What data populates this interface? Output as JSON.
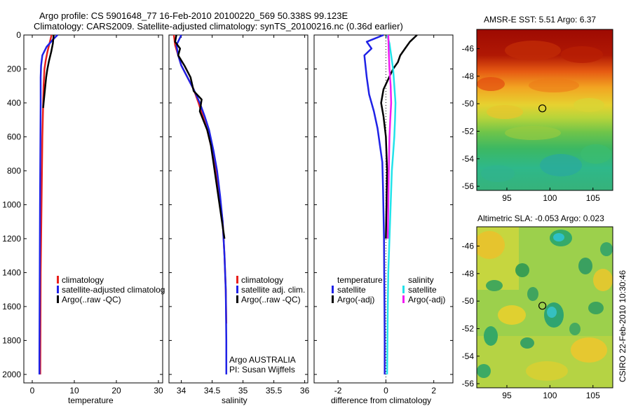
{
  "header": {
    "line1": "Argo profile: CS 5901648_77 16-Feb-2010 20100220_569 50.338S 99.123E",
    "line2": "Climatology: CARS2009. Satellite-adjusted climatology: synTS_20100216.nc (0.36d earlier)"
  },
  "side_label": "CSIRO 22-Feb-2010 10:30:46",
  "colors": {
    "climatology": "#e8201c",
    "satellite": "#1f22e6",
    "argo": "#000000",
    "sal_satellite": "#22e2ea",
    "sal_argo": "#f21bf2"
  },
  "chart_data": [
    {
      "id": "temperature",
      "type": "line",
      "xlabel": "temperature",
      "ylabel": "",
      "xlim": [
        -2,
        31
      ],
      "ylim": [
        2050,
        0
      ],
      "xticks": [
        0,
        10,
        20,
        30
      ],
      "yticks": [
        0,
        200,
        400,
        600,
        800,
        1000,
        1200,
        1400,
        1600,
        1800,
        2000
      ],
      "legend": [
        "climatology",
        "satellite-adjusted climatolog",
        "Argo(..raw -QC)"
      ],
      "series": [
        {
          "name": "climatology",
          "color": "#e8201c",
          "x": [
            4.6,
            4.1,
            3.6,
            3.2,
            2.9,
            2.7,
            2.6,
            2.5,
            2.4,
            2.3,
            2.2,
            2.1,
            2.0,
            1.95,
            1.9
          ],
          "y": [
            0,
            50,
            100,
            150,
            200,
            300,
            400,
            500,
            600,
            800,
            1000,
            1200,
            1400,
            1700,
            2000
          ]
        },
        {
          "name": "satellite-adjusted climatolog",
          "color": "#1f22e6",
          "x": [
            6.0,
            4.8,
            3.4,
            2.4,
            2.1,
            2.0,
            2.0,
            1.95,
            1.9,
            1.85,
            1.8,
            1.75,
            1.7,
            1.7
          ],
          "y": [
            0,
            30,
            70,
            120,
            180,
            250,
            400,
            600,
            800,
            1000,
            1300,
            1600,
            1900,
            2000
          ]
        },
        {
          "name": "Argo(..raw -QC)",
          "color": "#000000",
          "x": [
            5.1,
            4.9,
            4.5,
            4.0,
            3.6,
            3.3,
            3.1,
            2.9,
            2.7,
            2.6
          ],
          "y": [
            0,
            50,
            100,
            150,
            200,
            250,
            300,
            350,
            400,
            430
          ]
        }
      ]
    },
    {
      "id": "salinity",
      "type": "line",
      "xlabel": "salinity",
      "ylabel": "",
      "xlim": [
        33.8,
        36.05
      ],
      "ylim": [
        2050,
        0
      ],
      "xticks": [
        34,
        34.5,
        35,
        35.5,
        36
      ],
      "legend": [
        "climatology",
        "satellite adj. clim.",
        "Argo(..raw -QC)"
      ],
      "annotation": [
        "Argo AUSTRALIA",
        "PI: Susan Wijffels"
      ],
      "series": [
        {
          "name": "climatology",
          "color": "#e8201c",
          "x": [
            33.88,
            33.9,
            33.95,
            34.0,
            34.1,
            34.2,
            34.28,
            34.35,
            34.42,
            34.5,
            34.56,
            34.62,
            34.67,
            34.7,
            34.72,
            34.73
          ],
          "y": [
            0,
            60,
            120,
            180,
            250,
            320,
            400,
            480,
            560,
            680,
            800,
            950,
            1100,
            1300,
            1500,
            1700
          ]
        },
        {
          "name": "satellite adj. clim.",
          "color": "#1f22e6",
          "x": [
            34.0,
            33.92,
            33.95,
            34.0,
            34.1,
            34.2,
            34.3,
            34.38,
            34.45,
            34.52,
            34.58,
            34.63,
            34.67,
            34.7,
            34.72,
            34.73,
            34.73
          ],
          "y": [
            0,
            60,
            120,
            180,
            250,
            320,
            400,
            480,
            560,
            680,
            800,
            950,
            1100,
            1300,
            1500,
            1800,
            2000
          ]
        },
        {
          "name": "Argo(..raw -QC)",
          "color": "#000000",
          "x": [
            33.92,
            33.9,
            33.98,
            33.95,
            34.05,
            34.15,
            34.2,
            34.33,
            34.3,
            34.42,
            34.48,
            34.52,
            34.56,
            34.6,
            34.64,
            34.68,
            34.7
          ],
          "y": [
            0,
            40,
            80,
            120,
            180,
            250,
            330,
            380,
            450,
            560,
            650,
            750,
            850,
            950,
            1050,
            1150,
            1200
          ]
        }
      ]
    },
    {
      "id": "difference",
      "type": "line",
      "xlabel": "difference from climatology",
      "ylabel": "",
      "xlim": [
        -3,
        2.8
      ],
      "ylim": [
        2050,
        0
      ],
      "xticks": [
        -2,
        0,
        2
      ],
      "legend_temperature": {
        "title": "temperature",
        "items": [
          "satellite",
          "Argo(-adj)"
        ]
      },
      "legend_salinity": {
        "title": "salinity",
        "items": [
          "satellite",
          "Argo(-adj)"
        ]
      },
      "series": [
        {
          "name": "temperature satellite",
          "color": "#1f22e6",
          "x": [
            -0.1,
            -0.8,
            -0.6,
            -0.9,
            -0.8,
            -0.7,
            -0.5,
            -0.35,
            -0.25,
            -0.15,
            -0.12,
            -0.1,
            -0.08,
            -0.07,
            -0.06,
            -0.05,
            -0.05
          ],
          "y": [
            0,
            40,
            80,
            120,
            250,
            350,
            450,
            550,
            650,
            750,
            900,
            1050,
            1200,
            1400,
            1600,
            1800,
            2000
          ]
        },
        {
          "name": "temperature Argo(-adj)",
          "color": "#000000",
          "x": [
            1.3,
            1.0,
            0.8,
            0.6,
            0.5,
            0.3,
            0.1,
            -0.1,
            -0.2,
            -0.1,
            0.0,
            0.05,
            0.0
          ],
          "y": [
            0,
            40,
            80,
            120,
            160,
            200,
            260,
            320,
            400,
            480,
            600,
            800,
            1200
          ]
        },
        {
          "name": "salinity satellite",
          "color": "#22e2ea",
          "x": [
            0.05,
            0.15,
            0.2,
            0.3,
            0.35,
            0.4,
            0.38,
            0.35,
            0.3,
            0.25,
            0.2,
            0.15,
            0.1,
            0.08,
            0.05
          ],
          "y": [
            0,
            50,
            100,
            200,
            300,
            400,
            500,
            600,
            700,
            800,
            1000,
            1200,
            1400,
            1600,
            2000
          ]
        },
        {
          "name": "salinity Argo(-adj)",
          "color": "#f21bf2",
          "x": [
            0.1,
            0.12,
            0.15,
            0.2,
            0.22,
            0.18,
            0.15,
            0.12,
            0.1,
            0.08
          ],
          "y": [
            0,
            100,
            200,
            300,
            400,
            500,
            600,
            800,
            1000,
            1200
          ]
        }
      ]
    },
    {
      "id": "sst",
      "type": "heatmap",
      "title": "AMSR-E SST: 5.51 Argo: 6.37",
      "xticks": [
        95,
        100,
        105
      ],
      "yticks": [
        -46,
        -48,
        -50,
        -52,
        -54,
        -56
      ],
      "xlim": [
        91.5,
        107.3
      ],
      "ylim": [
        -56.3,
        -44.6
      ],
      "marker": {
        "lon": 99.123,
        "lat": -50.338
      }
    },
    {
      "id": "sla",
      "type": "heatmap",
      "title": "Altimetric SLA: -0.053 Argo: 0.023",
      "xticks": [
        95,
        100,
        105
      ],
      "yticks": [
        -46,
        -48,
        -50,
        -52,
        -54,
        -56
      ],
      "xlim": [
        91.5,
        107.3
      ],
      "ylim": [
        -56.3,
        -44.6
      ],
      "marker": {
        "lon": 99.123,
        "lat": -50.338
      }
    }
  ]
}
